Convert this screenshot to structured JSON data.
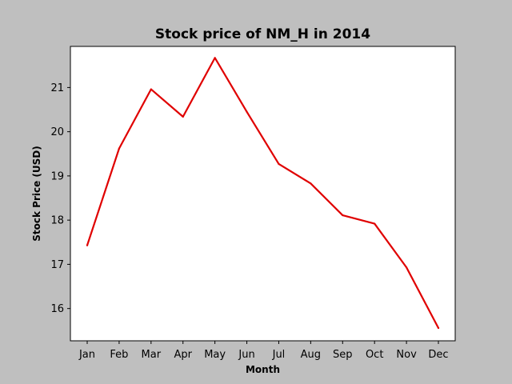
{
  "chart_data": {
    "type": "line",
    "title": "Stock price of NM_H in 2014",
    "xlabel": "Month",
    "ylabel": "Stock Price (USD)",
    "categories": [
      "Jan",
      "Feb",
      "Mar",
      "Apr",
      "May",
      "Jun",
      "Jul",
      "Aug",
      "Sep",
      "Oct",
      "Nov",
      "Dec"
    ],
    "series": [
      {
        "values": [
          17.43,
          19.62,
          20.96,
          20.34,
          21.67,
          20.45,
          19.27,
          18.83,
          18.11,
          17.92,
          16.93,
          15.56
        ]
      }
    ],
    "ylim": [
      15.27,
      21.93
    ],
    "yticks": [
      16,
      17,
      18,
      19,
      20,
      21
    ],
    "grid": false,
    "legend": "none",
    "colors": {
      "background": "#bfbfbf",
      "plot_area": "#ffffff",
      "line": "#e00000"
    }
  }
}
